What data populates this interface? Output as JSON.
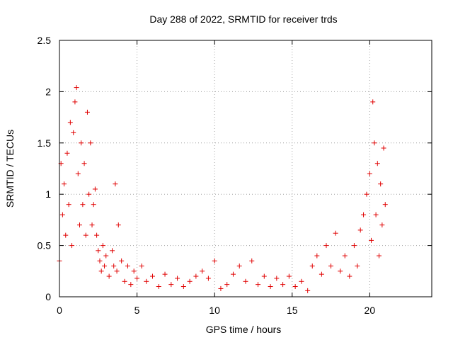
{
  "chart_data": {
    "type": "scatter",
    "title": "Day 288 of 2022, SRMTID for receiver trds",
    "xlabel": "GPS time / hours",
    "ylabel": "SRMTID / TECUs",
    "xlim": [
      0,
      24
    ],
    "ylim": [
      0,
      2.5
    ],
    "grid": true,
    "marker": "+",
    "series_color": "#e00000",
    "x_ticks": [
      0,
      5,
      10,
      15,
      20
    ],
    "x_tick_labels": [
      "0",
      "5",
      "10",
      "15",
      "20"
    ],
    "y_ticks": [
      0,
      0.5,
      1,
      1.5,
      2,
      2.5
    ],
    "y_tick_labels": [
      "0",
      "0.5",
      "1",
      "1.5",
      "2",
      "2.5"
    ],
    "series": [
      {
        "name": "SRMTID",
        "x": [
          0.0,
          0.1,
          0.2,
          0.3,
          0.4,
          0.5,
          0.6,
          0.7,
          0.8,
          0.9,
          1.0,
          1.1,
          1.2,
          1.3,
          1.4,
          1.5,
          1.6,
          1.7,
          1.8,
          1.9,
          2.0,
          2.1,
          2.2,
          2.3,
          2.4,
          2.5,
          2.6,
          2.7,
          2.8,
          2.9,
          3.0,
          3.2,
          3.4,
          3.5,
          3.6,
          3.7,
          3.8,
          4.0,
          4.2,
          4.4,
          4.6,
          4.8,
          5.0,
          5.3,
          5.6,
          6.0,
          6.4,
          6.8,
          7.2,
          7.6,
          8.0,
          8.4,
          8.8,
          9.2,
          9.6,
          10.0,
          10.4,
          10.8,
          11.2,
          11.6,
          12.0,
          12.4,
          12.8,
          13.2,
          13.6,
          14.0,
          14.4,
          14.8,
          15.2,
          15.6,
          16.0,
          16.3,
          16.6,
          16.9,
          17.2,
          17.5,
          17.8,
          18.1,
          18.4,
          18.7,
          19.0,
          19.2,
          19.4,
          19.6,
          19.8,
          20.0,
          20.1,
          20.2,
          20.3,
          20.4,
          20.5,
          20.6,
          20.7,
          20.8,
          20.9,
          21.0
        ],
        "values": [
          0.35,
          1.3,
          0.8,
          1.1,
          0.6,
          1.4,
          0.9,
          1.7,
          0.5,
          1.6,
          1.9,
          2.04,
          1.2,
          0.7,
          1.5,
          0.9,
          1.3,
          0.6,
          1.8,
          1.0,
          1.5,
          0.7,
          0.9,
          1.05,
          0.6,
          0.45,
          0.35,
          0.25,
          0.5,
          0.3,
          0.4,
          0.2,
          0.45,
          0.3,
          1.1,
          0.25,
          0.7,
          0.35,
          0.15,
          0.3,
          0.12,
          0.25,
          0.18,
          0.3,
          0.15,
          0.2,
          0.1,
          0.22,
          0.12,
          0.18,
          0.1,
          0.15,
          0.2,
          0.25,
          0.18,
          0.35,
          0.08,
          0.12,
          0.22,
          0.3,
          0.15,
          0.35,
          0.12,
          0.2,
          0.1,
          0.18,
          0.12,
          0.2,
          0.1,
          0.15,
          0.06,
          0.3,
          0.4,
          0.22,
          0.5,
          0.3,
          0.62,
          0.25,
          0.4,
          0.2,
          0.5,
          0.3,
          0.65,
          0.8,
          1.0,
          1.2,
          0.55,
          1.9,
          1.5,
          0.8,
          1.3,
          0.4,
          1.1,
          0.7,
          1.45,
          0.9
        ]
      }
    ]
  }
}
